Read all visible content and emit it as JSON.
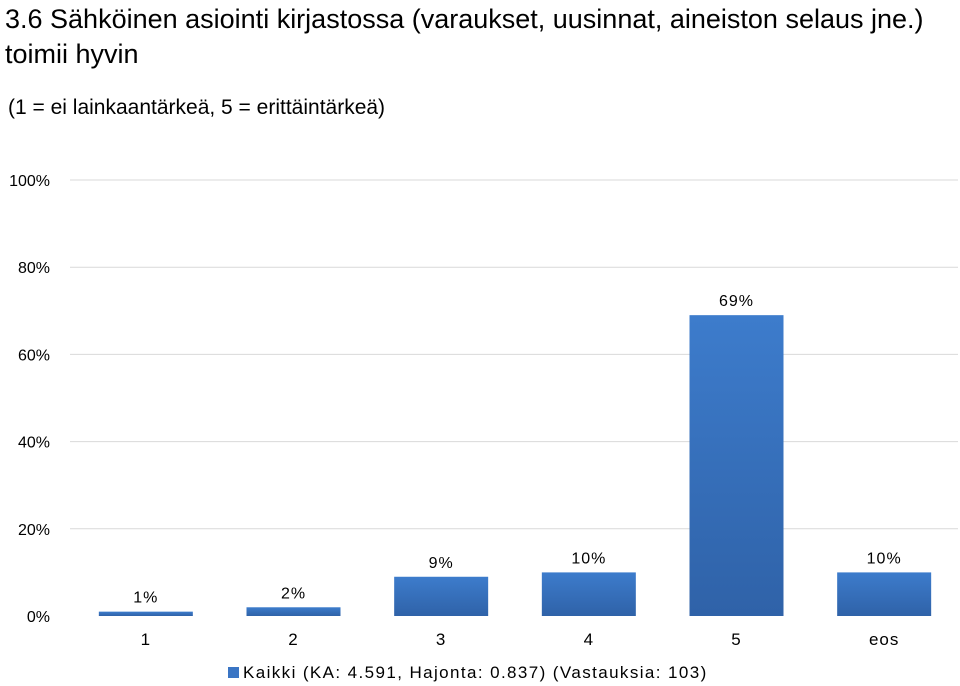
{
  "title": "3.6 Sähköinen asiointi kirjastossa (varaukset, uusinnat, aineiston selaus jne.) toimii hyvin",
  "subtitle": "(1 = ei lainkaantärkeä, 5 = erittäintärkeä)",
  "colors": {
    "bar": "#3a75c4",
    "bar_dark": "#2d5c9e",
    "grid": "#d9d9d9"
  },
  "chart_data": {
    "type": "bar",
    "categories": [
      "1",
      "2",
      "3",
      "4",
      "5",
      "eos"
    ],
    "series": [
      {
        "name": "Kaikki (KA: 4.591, Hajonta: 0.837) (Vastauksia: 103)",
        "values": [
          1,
          2,
          9,
          10,
          69,
          10
        ]
      }
    ],
    "data_labels": [
      "1%",
      "2%",
      "9%",
      "10%",
      "69%",
      "10%"
    ],
    "y_ticks": [
      "0%",
      "20%",
      "40%",
      "60%",
      "80%",
      "100%"
    ],
    "ylim": [
      0,
      100
    ],
    "grid": true,
    "legend_position": "bottom"
  }
}
